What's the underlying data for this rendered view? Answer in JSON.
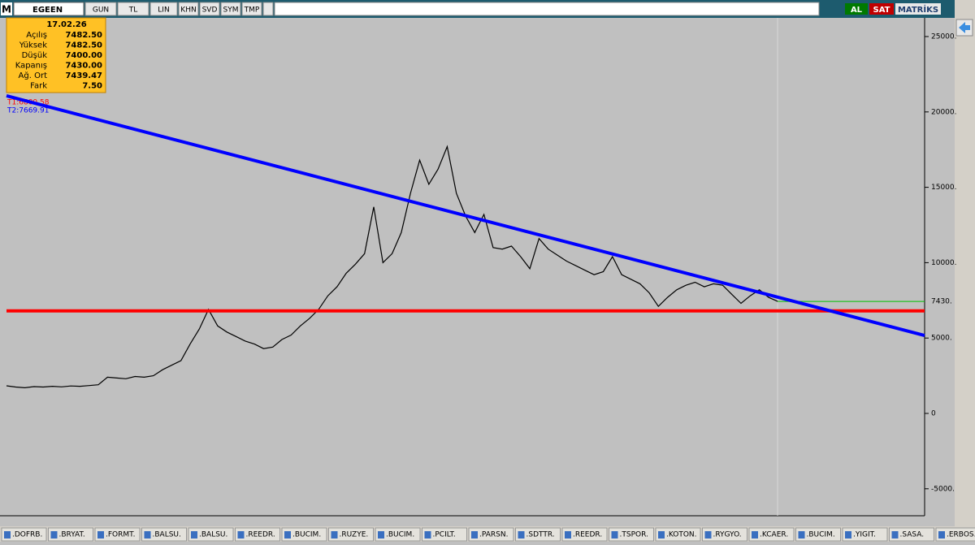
{
  "toolbar": {
    "logo": "M",
    "symbol": "EGEEN",
    "buttons": [
      "GUN",
      "TL",
      "LIN",
      "KHN",
      "SVD",
      "SYM",
      "TMP"
    ],
    "buy": "AL",
    "sell": "SAT",
    "brand": "MATRİKS"
  },
  "info_panel": {
    "date": "17.02.26",
    "rows": [
      [
        "Açılış",
        "7482.50"
      ],
      [
        "Yüksek",
        "7482.50"
      ],
      [
        "Düşük",
        "7400.00"
      ],
      [
        "Kapanış",
        "7430.00"
      ],
      [
        "Ağ. Ort",
        "7439.47"
      ],
      [
        "Fark",
        "7.50"
      ]
    ]
  },
  "tabs": [
    ".DOFRB.",
    ".BRYAT.",
    ".FORMT.",
    ".BALSU.",
    ".BALSU.",
    ".REEDR.",
    ".BUCIM.",
    ".RUZYE.",
    ".BUCIM.",
    ".PCILT.",
    ".PARSN.",
    ".SDTTR.",
    ".REEDR.",
    ".TSPOR.",
    ".KOTON.",
    ".RYGYO.",
    ".KCAER.",
    ".BUCIM.",
    ".YIGIT.",
    ".SASA.",
    ".ERBOS."
  ],
  "chart_data": {
    "type": "line",
    "color": "#000000",
    "values": [
      1830,
      1750,
      1700,
      1780,
      1750,
      1800,
      1760,
      1820,
      1800,
      1850,
      1900,
      2400,
      2350,
      2300,
      2450,
      2400,
      2500,
      2900,
      3200,
      3500,
      4600,
      5600,
      6900,
      5800,
      5400,
      5100,
      4800,
      4600,
      4300,
      4400,
      4900,
      5200,
      5800,
      6300,
      6900,
      7800,
      8400,
      9300,
      9900,
      10600,
      13700,
      10000,
      10600,
      12000,
      14600,
      16800,
      15200,
      16200,
      17700,
      14600,
      13100,
      12000,
      13200,
      11000,
      10900,
      11100,
      10400,
      9600,
      11600,
      10900,
      10500,
      10100,
      9800,
      9500,
      9200,
      9400,
      10400,
      9200,
      8900,
      8600,
      8000,
      7100,
      7700,
      8200,
      8500,
      8700,
      8400,
      8600,
      8500,
      7900,
      7300,
      7800,
      8200,
      7700,
      7430,
      null,
      null,
      null,
      null,
      null,
      null,
      null,
      null,
      null,
      null,
      null,
      null,
      null,
      null,
      null
    ],
    "ylim": [
      -6790,
      26240
    ],
    "yticks": [
      {
        "value": -5000,
        "label": "-5000."
      },
      0,
      {
        "value": 5000,
        "label": "5000."
      },
      {
        "value": 10000,
        "label": "10000."
      },
      {
        "value": 15000,
        "label": "15000."
      },
      {
        "value": 20000,
        "label": "20000."
      },
      {
        "value": 25000,
        "label": "25000."
      }
    ],
    "last_price": {
      "value": 7430,
      "label": "7430."
    },
    "trend_lines": [
      {
        "label": "T1:6800.58",
        "color": "#ff0000",
        "values": [
          6800.58,
          6800.58
        ]
      },
      {
        "label": "T2:7669.91",
        "color": "#0000ff",
        "values": [
          21070,
          5170
        ]
      }
    ]
  }
}
